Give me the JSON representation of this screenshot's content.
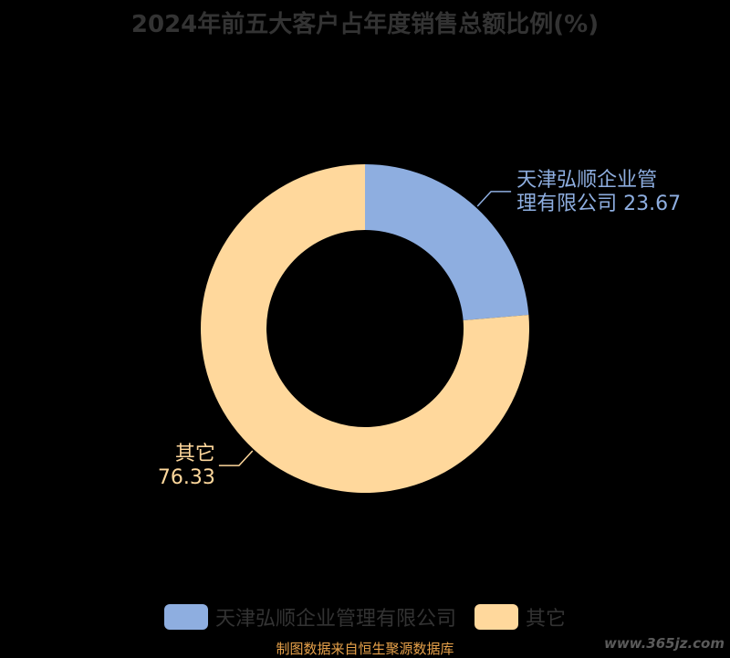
{
  "chart_data": {
    "type": "pie",
    "title": "2024年前五大客户占年度销售总额比例(%)",
    "donut": true,
    "categories": [
      "天津弘顺企业管理有限公司",
      "其它"
    ],
    "values": [
      23.67,
      76.33
    ],
    "colors": [
      "#8eaee0",
      "#ffd89c"
    ],
    "labels": [
      {
        "lines": [
          "天津弘顺企业管",
          "理有限公司 23.67"
        ]
      },
      {
        "lines": [
          "其它",
          "76.33"
        ]
      }
    ],
    "legend_position": "bottom"
  },
  "source_note": "制图数据来自恒生聚源数据库",
  "watermark": "www.365jz.com"
}
